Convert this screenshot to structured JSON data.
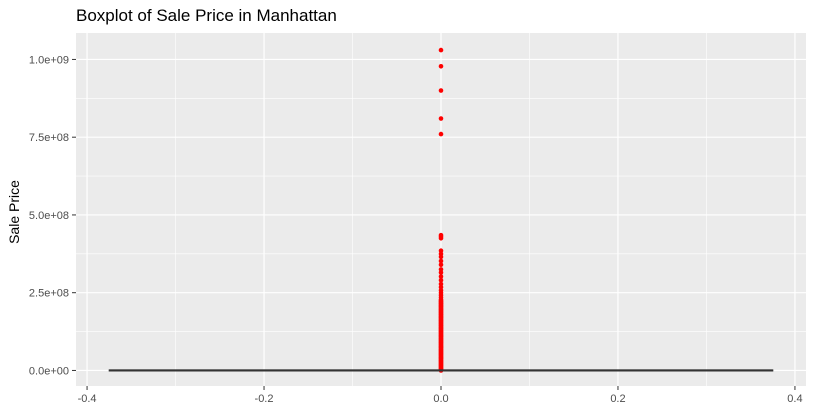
{
  "chart_data": {
    "type": "boxplot",
    "title": "Boxplot of Sale Price in Manhattan",
    "xlabel": "",
    "ylabel": "Sale Price",
    "xlim": [
      -0.4125,
      0.4125
    ],
    "ylim": [
      -50000000,
      1085000000
    ],
    "x_ticks": [
      -0.4,
      -0.2,
      0.0,
      0.2,
      0.4
    ],
    "x_tick_labels": [
      "-0.4",
      "-0.2",
      "0.0",
      "0.2",
      "0.4"
    ],
    "y_ticks": [
      0,
      250000000,
      500000000,
      750000000,
      1000000000
    ],
    "y_tick_labels": [
      "0.0e+00",
      "2.5e+08",
      "5.0e+08",
      "7.5e+08",
      "1.0e+09"
    ],
    "grid": true,
    "background": "#EBEBEB",
    "outlier_color": "#FF0000",
    "box": {
      "x": 0,
      "width": 0.75,
      "q1": 0,
      "median": 0,
      "q3": 0,
      "whisker_low": 0,
      "whisker_high": 0
    },
    "outliers_top": [
      1030000000,
      978000000,
      900000000,
      810000000,
      760000000,
      435000000,
      430000000,
      425000000,
      385000000,
      375000000,
      365000000,
      352000000,
      340000000,
      325000000,
      315000000,
      302000000,
      290000000,
      278000000,
      268000000,
      258000000,
      250000000,
      242000000,
      235000000,
      228000000
    ],
    "outliers_dense_range": [
      0,
      225000000
    ]
  }
}
